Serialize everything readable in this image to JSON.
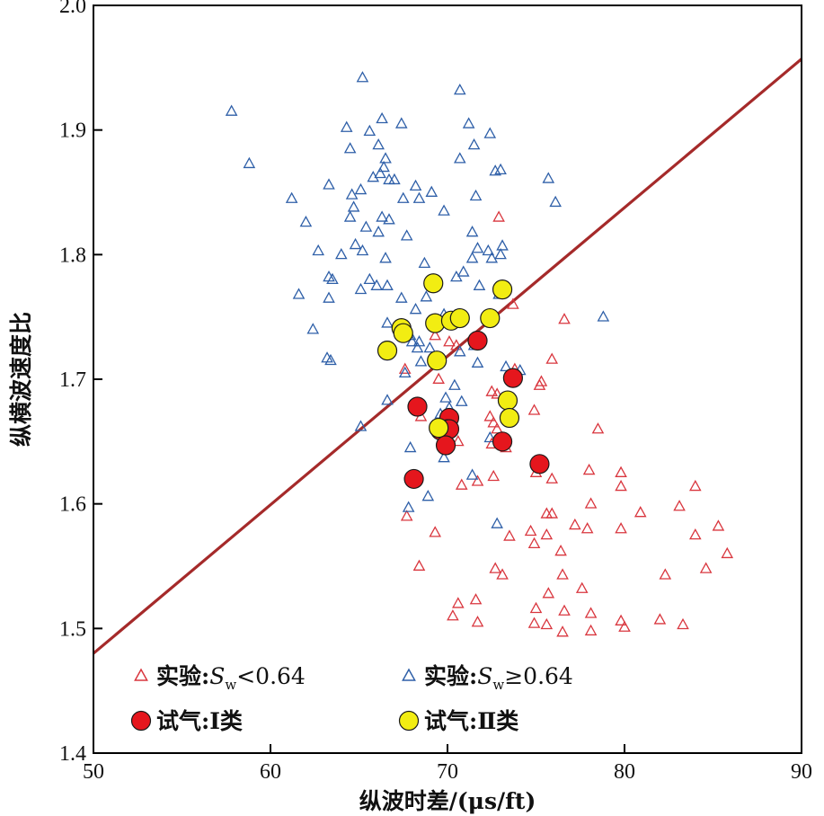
{
  "chart_data": {
    "type": "scatter",
    "xlabel": "纵波时差/(μs/ft)",
    "ylabel": "纵横波速度比",
    "xlim": [
      50,
      90
    ],
    "ylim": [
      1.4,
      2.0
    ],
    "xticks": [
      50,
      60,
      70,
      80,
      90
    ],
    "yticks": [
      1.4,
      1.5,
      1.6,
      1.7,
      1.8,
      1.9,
      2.0
    ],
    "ytick_labels": [
      "1.4",
      "1.5",
      "1.6",
      "1.7",
      "1.8",
      "1.9",
      "2.0"
    ],
    "grid": false,
    "legend_position": "bottom-left",
    "trend_line": {
      "points": [
        [
          50,
          1.48
        ],
        [
          90,
          1.957
        ]
      ],
      "color": "#a52a2a"
    },
    "series": [
      {
        "name": "实验:Sw<0.64",
        "legend_label": {
          "prefix": "实验:",
          "var": "S",
          "sub": "w",
          "rest": "<0.64"
        },
        "marker": "triangle-open",
        "color": "#d9363e",
        "points": [
          [
            72.9,
            1.83
          ],
          [
            73.7,
            1.76
          ],
          [
            76.6,
            1.748
          ],
          [
            75.9,
            1.716
          ],
          [
            73.8,
            1.708
          ],
          [
            72.5,
            1.69
          ],
          [
            72.8,
            1.688
          ],
          [
            75.3,
            1.698
          ],
          [
            75.2,
            1.695
          ],
          [
            74.9,
            1.675
          ],
          [
            72.4,
            1.67
          ],
          [
            72.6,
            1.665
          ],
          [
            73.3,
            1.645
          ],
          [
            72.5,
            1.648
          ],
          [
            73.0,
            1.65
          ],
          [
            72.8,
            1.66
          ],
          [
            69.5,
            1.7
          ],
          [
            70.1,
            1.73
          ],
          [
            69.3,
            1.735
          ],
          [
            70.5,
            1.727
          ],
          [
            67.6,
            1.708
          ],
          [
            68.5,
            1.67
          ],
          [
            70.6,
            1.65
          ],
          [
            70.8,
            1.615
          ],
          [
            71.7,
            1.618
          ],
          [
            72.6,
            1.622
          ],
          [
            67.7,
            1.59
          ],
          [
            69.3,
            1.577
          ],
          [
            68.4,
            1.55
          ],
          [
            75.0,
            1.625
          ],
          [
            75.9,
            1.62
          ],
          [
            78.0,
            1.627
          ],
          [
            78.5,
            1.66
          ],
          [
            79.8,
            1.625
          ],
          [
            79.8,
            1.614
          ],
          [
            84.0,
            1.614
          ],
          [
            78.1,
            1.6
          ],
          [
            83.1,
            1.598
          ],
          [
            75.6,
            1.592
          ],
          [
            75.9,
            1.592
          ],
          [
            77.2,
            1.583
          ],
          [
            77.9,
            1.58
          ],
          [
            79.8,
            1.58
          ],
          [
            80.9,
            1.593
          ],
          [
            85.3,
            1.582
          ],
          [
            73.5,
            1.574
          ],
          [
            74.9,
            1.568
          ],
          [
            75.6,
            1.575
          ],
          [
            76.4,
            1.562
          ],
          [
            74.7,
            1.578
          ],
          [
            84.0,
            1.575
          ],
          [
            85.8,
            1.56
          ],
          [
            72.7,
            1.548
          ],
          [
            73.1,
            1.543
          ],
          [
            76.5,
            1.543
          ],
          [
            82.3,
            1.543
          ],
          [
            84.6,
            1.548
          ],
          [
            75.7,
            1.528
          ],
          [
            77.6,
            1.532
          ],
          [
            70.6,
            1.52
          ],
          [
            71.6,
            1.523
          ],
          [
            75.0,
            1.516
          ],
          [
            76.6,
            1.514
          ],
          [
            70.3,
            1.51
          ],
          [
            71.7,
            1.505
          ],
          [
            74.9,
            1.504
          ],
          [
            75.6,
            1.503
          ],
          [
            76.5,
            1.497
          ],
          [
            78.1,
            1.512
          ],
          [
            78.1,
            1.498
          ],
          [
            79.8,
            1.506
          ],
          [
            80.0,
            1.501
          ],
          [
            82.0,
            1.507
          ],
          [
            83.3,
            1.503
          ]
        ]
      },
      {
        "name": "实验:Sw≥0.64",
        "legend_label": {
          "prefix": "实验:",
          "var": "S",
          "sub": "w",
          "rest": "≥0.64"
        },
        "marker": "triangle-open",
        "color": "#2e5fa8",
        "points": [
          [
            65.2,
            1.942
          ],
          [
            70.7,
            1.932
          ],
          [
            57.8,
            1.915
          ],
          [
            66.3,
            1.909
          ],
          [
            67.4,
            1.905
          ],
          [
            71.2,
            1.905
          ],
          [
            64.3,
            1.902
          ],
          [
            65.6,
            1.899
          ],
          [
            72.4,
            1.897
          ],
          [
            66.1,
            1.888
          ],
          [
            64.5,
            1.885
          ],
          [
            71.5,
            1.888
          ],
          [
            58.8,
            1.873
          ],
          [
            66.5,
            1.877
          ],
          [
            70.7,
            1.877
          ],
          [
            66.4,
            1.87
          ],
          [
            66.2,
            1.865
          ],
          [
            66.7,
            1.86
          ],
          [
            67.0,
            1.86
          ],
          [
            65.8,
            1.862
          ],
          [
            63.3,
            1.856
          ],
          [
            65.1,
            1.852
          ],
          [
            68.2,
            1.855
          ],
          [
            69.1,
            1.85
          ],
          [
            71.6,
            1.847
          ],
          [
            72.7,
            1.867
          ],
          [
            73.0,
            1.868
          ],
          [
            75.7,
            1.861
          ],
          [
            76.1,
            1.842
          ],
          [
            61.2,
            1.845
          ],
          [
            64.6,
            1.848
          ],
          [
            66.3,
            1.83
          ],
          [
            66.7,
            1.828
          ],
          [
            67.5,
            1.845
          ],
          [
            68.4,
            1.845
          ],
          [
            69.8,
            1.835
          ],
          [
            64.7,
            1.838
          ],
          [
            64.5,
            1.83
          ],
          [
            62.0,
            1.826
          ],
          [
            65.4,
            1.822
          ],
          [
            66.1,
            1.818
          ],
          [
            67.7,
            1.815
          ],
          [
            71.4,
            1.818
          ],
          [
            71.7,
            1.805
          ],
          [
            72.3,
            1.803
          ],
          [
            71.4,
            1.797
          ],
          [
            73.1,
            1.807
          ],
          [
            64.8,
            1.808
          ],
          [
            65.2,
            1.803
          ],
          [
            64.0,
            1.8
          ],
          [
            66.5,
            1.797
          ],
          [
            70.9,
            1.786
          ],
          [
            72.5,
            1.797
          ],
          [
            73.0,
            1.8
          ],
          [
            68.7,
            1.793
          ],
          [
            62.7,
            1.803
          ],
          [
            63.3,
            1.782
          ],
          [
            63.5,
            1.78
          ],
          [
            65.6,
            1.78
          ],
          [
            66.0,
            1.775
          ],
          [
            66.6,
            1.775
          ],
          [
            67.4,
            1.765
          ],
          [
            61.6,
            1.768
          ],
          [
            63.3,
            1.765
          ],
          [
            65.1,
            1.772
          ],
          [
            70.5,
            1.782
          ],
          [
            71.8,
            1.775
          ],
          [
            73.0,
            1.772
          ],
          [
            72.9,
            1.768
          ],
          [
            68.8,
            1.766
          ],
          [
            68.2,
            1.756
          ],
          [
            69.8,
            1.752
          ],
          [
            66.6,
            1.745
          ],
          [
            62.4,
            1.74
          ],
          [
            78.8,
            1.75
          ],
          [
            67.9,
            1.735
          ],
          [
            68.4,
            1.73
          ],
          [
            68.3,
            1.725
          ],
          [
            68.0,
            1.73
          ],
          [
            69.0,
            1.725
          ],
          [
            70.7,
            1.722
          ],
          [
            71.5,
            1.727
          ],
          [
            63.2,
            1.717
          ],
          [
            63.4,
            1.715
          ],
          [
            68.5,
            1.714
          ],
          [
            71.7,
            1.713
          ],
          [
            73.3,
            1.71
          ],
          [
            74.1,
            1.707
          ],
          [
            67.6,
            1.705
          ],
          [
            70.4,
            1.695
          ],
          [
            69.9,
            1.685
          ],
          [
            66.6,
            1.683
          ],
          [
            70.8,
            1.682
          ],
          [
            65.1,
            1.662
          ],
          [
            69.6,
            1.672
          ],
          [
            70.1,
            1.677
          ],
          [
            72.4,
            1.653
          ],
          [
            67.9,
            1.645
          ],
          [
            69.8,
            1.637
          ],
          [
            71.4,
            1.623
          ],
          [
            67.8,
            1.597
          ],
          [
            68.9,
            1.606
          ],
          [
            72.8,
            1.584
          ]
        ]
      },
      {
        "name": "试气:Ⅰ类",
        "legend_label": {
          "prefix": "试气:",
          "var": "",
          "sub": "",
          "rest": "Ⅰ类"
        },
        "marker": "circle-filled",
        "color": "#e5161d",
        "points": [
          [
            71.7,
            1.731
          ],
          [
            73.7,
            1.701
          ],
          [
            68.3,
            1.678
          ],
          [
            70.1,
            1.669
          ],
          [
            70.0,
            1.66
          ],
          [
            69.6,
            1.659
          ],
          [
            70.1,
            1.66
          ],
          [
            69.9,
            1.647
          ],
          [
            73.1,
            1.65
          ],
          [
            75.2,
            1.632
          ],
          [
            68.1,
            1.62
          ]
        ]
      },
      {
        "name": "试气:Ⅱ类",
        "legend_label": {
          "prefix": "试气:",
          "var": "",
          "sub": "",
          "rest": "Ⅱ类"
        },
        "marker": "circle-filled",
        "color": "#f2ed12",
        "points": [
          [
            69.2,
            1.777
          ],
          [
            73.1,
            1.772
          ],
          [
            69.3,
            1.745
          ],
          [
            70.2,
            1.747
          ],
          [
            70.7,
            1.749
          ],
          [
            72.4,
            1.749
          ],
          [
            67.4,
            1.741
          ],
          [
            67.5,
            1.737
          ],
          [
            66.6,
            1.723
          ],
          [
            69.4,
            1.715
          ],
          [
            73.4,
            1.683
          ],
          [
            73.5,
            1.669
          ],
          [
            69.5,
            1.661
          ]
        ]
      }
    ]
  }
}
